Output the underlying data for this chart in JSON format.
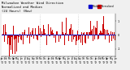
{
  "title": "Milwaukee Weather Wind Direction\nNormalized and Median\n(24 Hours) (New)",
  "title_fontsize": 2.8,
  "background_color": "#f0f0f0",
  "plot_bg_color": "#ffffff",
  "grid_color": "#aaaaaa",
  "bar_color": "#cc0000",
  "median_color": "#0000cc",
  "median_value": 0.05,
  "ylim": [
    -1.5,
    1.5
  ],
  "yticks": [
    -1.0,
    0.0,
    1.0
  ],
  "ytick_labels": [
    "-1",
    "0",
    "1"
  ],
  "n_bars": 200,
  "legend_blue_label": "Median",
  "legend_red_label": "Normalized",
  "n_xticks": 30,
  "seed": 42
}
